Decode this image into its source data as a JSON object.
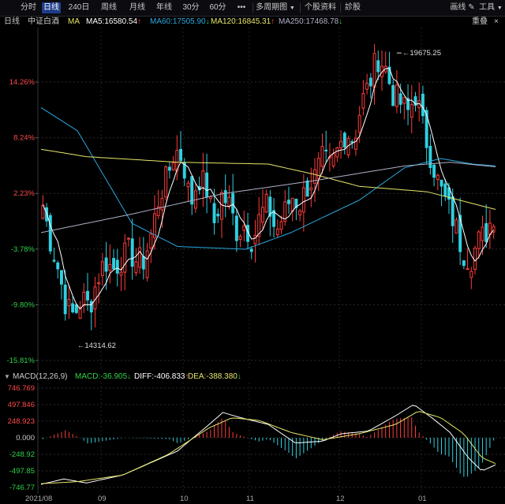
{
  "toolbar": {
    "items": [
      "分时",
      "日线",
      "240日",
      "周线",
      "月线",
      "年线",
      "30分",
      "60分",
      "•••",
      "多周期图",
      "个股资料",
      "診股"
    ],
    "active": "日线",
    "right_items": [
      "画线",
      "工具"
    ]
  },
  "info": {
    "period": "日线",
    "name": "中证白酒",
    "ma_label": "MA",
    "ma5": "MA5:16580.54",
    "ma60": "MA60:17505.90",
    "ma120": "MA120:16845.31",
    "ma250": "MA250:17468.78",
    "right_label": "重叠"
  },
  "colors": {
    "up": "#ff3b3b",
    "down": "#2fd0e0",
    "ma5": "#ffffff",
    "ma60": "#2aa8e0",
    "ma120": "#e6e66a",
    "ma250": "#b0b0c8",
    "axis_red": "#ff4a4a",
    "axis_green": "#30d24a"
  },
  "axis": {
    "percent_labels": [
      "14.26%",
      "8.24%",
      "2.23%",
      "-3.78%",
      "-9.80%",
      "-15.81%"
    ],
    "high_annotation": "19675.25",
    "low_annotation": "14314.62"
  },
  "macd": {
    "title": "MACD(12,26,9)",
    "macd_text": "MACD:-36.905",
    "diff_text": "DIFF:-406.833",
    "dea_text": "DEA:-388.380",
    "labels": [
      "746.769",
      "497.846",
      "248.923",
      "0.000",
      "-248.92",
      "-497.85",
      "-746.77"
    ]
  },
  "xaxis": {
    "labels": [
      "2021/08",
      "09",
      "10",
      "11",
      "12",
      "01"
    ]
  },
  "chart_data": [
    {
      "type": "candlestick",
      "title": "中证白酒 日线",
      "ylabel": "",
      "y_range_percent": [
        -15.81,
        14.26
      ],
      "annotations": [
        {
          "label": "19675.25",
          "kind": "high"
        },
        {
          "label": "14314.62",
          "kind": "low"
        }
      ],
      "series": [
        {
          "name": "MA5",
          "last": 16580.54
        },
        {
          "name": "MA60",
          "last": 17505.9
        },
        {
          "name": "MA120",
          "last": 16845.31
        },
        {
          "name": "MA250",
          "last": 17468.78
        }
      ],
      "close_percent_path": [
        1,
        -3,
        -6,
        -10,
        -11,
        -9,
        -10,
        -7,
        -5,
        -6,
        -5,
        -4,
        -5,
        -5,
        -2,
        2,
        4,
        7,
        6,
        1,
        4,
        3,
        -1,
        2,
        1,
        -2,
        -1,
        -3,
        0,
        1,
        -2,
        0,
        2,
        1,
        3,
        4,
        6,
        5,
        7,
        9,
        8,
        12,
        14,
        17,
        16,
        13,
        12,
        11,
        13,
        9,
        6,
        3,
        1,
        -1,
        -4,
        -5,
        -3,
        -2,
        0
      ]
    },
    {
      "type": "macd",
      "title": "MACD(12,26,9)",
      "y_range": [
        -746.77,
        746.769
      ],
      "last": {
        "MACD": -36.905,
        "DIFF": -406.833,
        "DEA": -388.38
      }
    }
  ]
}
